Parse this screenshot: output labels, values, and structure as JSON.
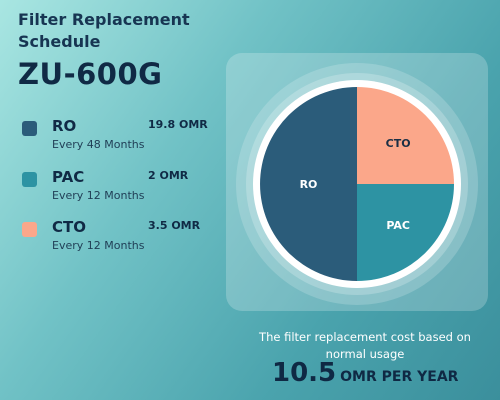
{
  "header": {
    "title": "Filter Replacement Schedule",
    "model": "ZU-600G"
  },
  "legend": [
    {
      "name": "RO",
      "price": "19.8 OMR",
      "frequency": "Every 48 Months",
      "color": "#2b5c7a"
    },
    {
      "name": "PAC",
      "price": "2 OMR",
      "frequency": "Every 12 Months",
      "color": "#2d93a3"
    },
    {
      "name": "CTO",
      "price": "3.5 OMR",
      "frequency": "Every 12 Months",
      "color": "#fba78a"
    }
  ],
  "chart_data": {
    "type": "pie",
    "slices": [
      {
        "label": "RO",
        "value": 0.5,
        "color": "#2b5c7a"
      },
      {
        "label": "CTO",
        "value": 0.25,
        "color": "#fba78a"
      },
      {
        "label": "PAC",
        "value": 0.25,
        "color": "#2d93a3"
      }
    ]
  },
  "footer": {
    "caption": "The filter replacement cost based on normal usage",
    "total_value": "10.5",
    "total_unit": "OMR PER YEAR"
  }
}
